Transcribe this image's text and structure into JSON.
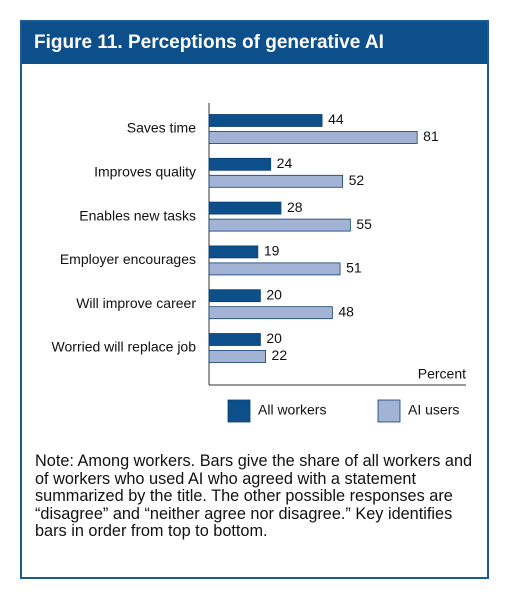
{
  "chart_data": {
    "type": "bar",
    "orientation": "horizontal",
    "title": "Figure 11. Perceptions of generative AI",
    "categories": [
      "Saves time",
      "Improves quality",
      "Enables new tasks",
      "Employer encourages",
      "Will improve career",
      "Worried will replace job"
    ],
    "series": [
      {
        "name": "All workers",
        "color": "#0d4f8b",
        "values": [
          44,
          24,
          28,
          19,
          20,
          20
        ]
      },
      {
        "name": "AI users",
        "color": "#a3b3d6",
        "values": [
          81,
          52,
          55,
          51,
          48,
          22
        ]
      }
    ],
    "xlabel": "Percent",
    "xlim": [
      0,
      100
    ],
    "note": "Note: Among workers. Bars give the share of all workers and of workers who used AI who agreed with a statement summarized by the title. The other possible responses are “disagree” and “neither agree nor dis­agree.” Key identifies bars in order from top to bottom."
  }
}
